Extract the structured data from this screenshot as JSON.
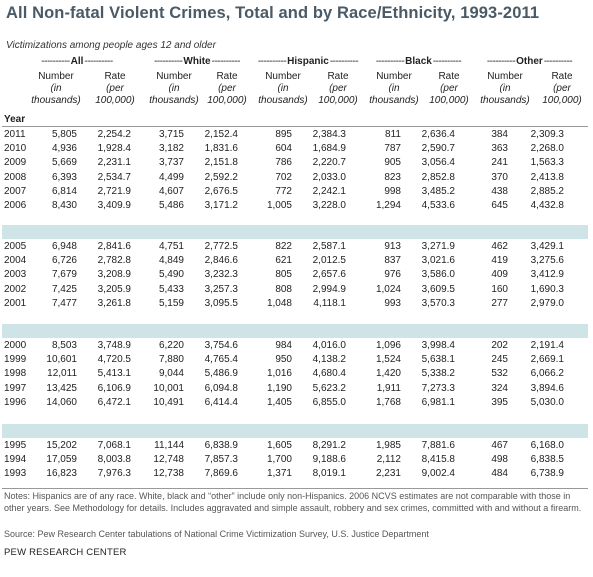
{
  "title": "All Non-fatal Violent Crimes, Total and by Race/Ethnicity, 1993-2011",
  "subtitle": "Victimizations among people ages 12 and older",
  "groups": [
    {
      "label": "All"
    },
    {
      "label": "White"
    },
    {
      "label": "Hispanic"
    },
    {
      "label": "Black"
    },
    {
      "label": "Other"
    }
  ],
  "column_headers": {
    "number_l1": "Number",
    "number_l2": "(in",
    "number_l3": "thousands)",
    "rate_l1": "Rate",
    "rate_l2": "(per",
    "rate_l3": "100,000)"
  },
  "year_label": "Year",
  "blocks": [
    [
      [
        "2011",
        "5,805",
        "2,254.2",
        "3,715",
        "2,152.4",
        "895",
        "2,384.3",
        "811",
        "2,636.4",
        "384",
        "2,309.3"
      ],
      [
        "2010",
        "4,936",
        "1,928.4",
        "3,182",
        "1,831.6",
        "604",
        "1,684.9",
        "787",
        "2,590.7",
        "363",
        "2,268.0"
      ],
      [
        "2009",
        "5,669",
        "2,231.1",
        "3,737",
        "2,151.8",
        "786",
        "2,220.7",
        "905",
        "3,056.4",
        "241",
        "1,563.3"
      ],
      [
        "2008",
        "6,393",
        "2,534.7",
        "4,499",
        "2,592.2",
        "702",
        "2,033.0",
        "823",
        "2,852.8",
        "370",
        "2,413.8"
      ],
      [
        "2007",
        "6,814",
        "2,721.9",
        "4,607",
        "2,676.5",
        "772",
        "2,242.1",
        "998",
        "3,485.2",
        "438",
        "2,885.2"
      ],
      [
        "2006",
        "8,430",
        "3,409.9",
        "5,486",
        "3,171.2",
        "1,005",
        "3,228.0",
        "1,294",
        "4,533.6",
        "645",
        "4,432.8"
      ]
    ],
    [
      [
        "2005",
        "6,948",
        "2,841.6",
        "4,751",
        "2,772.5",
        "822",
        "2,587.1",
        "913",
        "3,271.9",
        "462",
        "3,429.1"
      ],
      [
        "2004",
        "6,726",
        "2,782.8",
        "4,849",
        "2,846.6",
        "621",
        "2,012.5",
        "837",
        "3,021.6",
        "419",
        "3,275.6"
      ],
      [
        "2003",
        "7,679",
        "3,208.9",
        "5,490",
        "3,232.3",
        "805",
        "2,657.6",
        "976",
        "3,586.0",
        "409",
        "3,412.9"
      ],
      [
        "2002",
        "7,425",
        "3,205.9",
        "5,433",
        "3,257.3",
        "808",
        "2,994.9",
        "1,024",
        "3,609.5",
        "160",
        "1,690.3"
      ],
      [
        "2001",
        "7,477",
        "3,261.8",
        "5,159",
        "3,095.5",
        "1,048",
        "4,118.1",
        "993",
        "3,570.3",
        "277",
        "2,979.0"
      ]
    ],
    [
      [
        "2000",
        "8,503",
        "3,748.9",
        "6,220",
        "3,754.6",
        "984",
        "4,016.0",
        "1,096",
        "3,998.4",
        "202",
        "2,191.4"
      ],
      [
        "1999",
        "10,601",
        "4,720.5",
        "7,880",
        "4,765.4",
        "950",
        "4,138.2",
        "1,524",
        "5,638.1",
        "245",
        "2,669.1"
      ],
      [
        "1998",
        "12,011",
        "5,413.1",
        "9,044",
        "5,486.9",
        "1,016",
        "4,680.4",
        "1,420",
        "5,338.2",
        "532",
        "6,066.2"
      ],
      [
        "1997",
        "13,425",
        "6,106.9",
        "10,001",
        "6,094.8",
        "1,190",
        "5,623.2",
        "1,911",
        "7,273.3",
        "324",
        "3,894.6"
      ],
      [
        "1996",
        "14,060",
        "6,472.1",
        "10,491",
        "6,414.4",
        "1,405",
        "6,855.0",
        "1,768",
        "6,981.1",
        "395",
        "5,030.0"
      ]
    ],
    [
      [
        "1995",
        "15,202",
        "7,068.1",
        "11,144",
        "6,838.9",
        "1,605",
        "8,291.2",
        "1,985",
        "7,881.6",
        "467",
        "6,168.0"
      ],
      [
        "1994",
        "17,059",
        "8,003.8",
        "12,748",
        "7,857.3",
        "1,700",
        "9,188.6",
        "2,112",
        "8,415.8",
        "498",
        "6,838.5"
      ],
      [
        "1993",
        "16,823",
        "7,976.3",
        "12,738",
        "7,869.6",
        "1,371",
        "8,019.1",
        "2,231",
        "9,002.4",
        "484",
        "6,738.9"
      ]
    ]
  ],
  "notes": "Notes: Hispanics are of any race. White, black and “other” include only non-Hispanics. 2006 NCVS estimates are not comparable with those in other years. See Methodology for details. Includes aggravated and simple assault, robbery and sex crimes, committed with and without a firearm.",
  "source": "Source: Pew Research Center tabulations of National Crime Victimization Survey, U.S. Justice Department",
  "brand": "PEW RESEARCH CENTER",
  "colors": {
    "band": "#cfe4e6",
    "title": "#4a5a66"
  }
}
